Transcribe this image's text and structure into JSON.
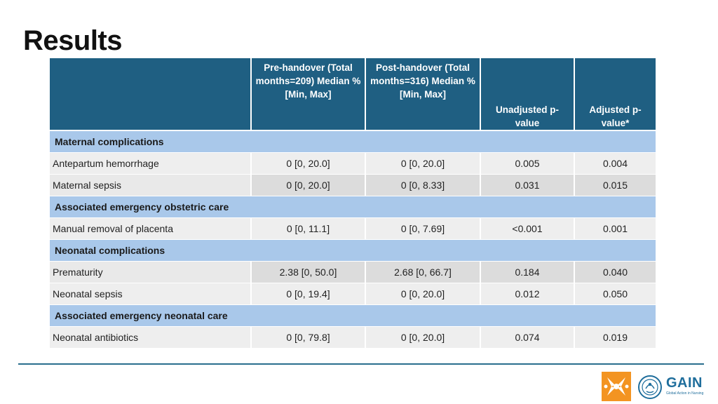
{
  "slide": {
    "title": "Results"
  },
  "table": {
    "headers": [
      "",
      "Pre-handover (Total months=209) Median % [Min, Max]",
      "Post-handover (Total months=316) Median % [Min, Max]",
      "Unadjusted p-value",
      "Adjusted p-value*"
    ],
    "rows": [
      {
        "type": "section",
        "label": "Maternal complications"
      },
      {
        "type": "data",
        "label": "Antepartum hemorrhage",
        "pre": "0 [0, 20.0]",
        "post": "0 [0, 20.0]",
        "unadj": "0.005",
        "adj": "0.004"
      },
      {
        "type": "data",
        "label": "Maternal sepsis",
        "pre": "0 [0, 20.0]",
        "post": "0 [0, 8.33]",
        "unadj": "0.031",
        "adj": "0.015"
      },
      {
        "type": "section",
        "label": "Associated emergency obstetric care"
      },
      {
        "type": "data",
        "label": "Manual removal of placenta",
        "pre": "0 [0, 11.1]",
        "post": "0 [0, 7.69]",
        "unadj": "<0.001",
        "adj": "0.001"
      },
      {
        "type": "section",
        "label": "Neonatal complications"
      },
      {
        "type": "data",
        "label": "Prematurity",
        "pre": "2.38 [0, 50.0]",
        "post": "2.68 [0, 66.7]",
        "unadj": "0.184",
        "adj": "0.040"
      },
      {
        "type": "data",
        "label": "Neonatal sepsis",
        "pre": "0 [0, 19.4]",
        "post": "0 [0, 20.0]",
        "unadj": "0.012",
        "adj": "0.050"
      },
      {
        "type": "section",
        "label": "Associated emergency neonatal care"
      },
      {
        "type": "data",
        "label": "Neonatal antibiotics",
        "pre": "0 [0, 79.8]",
        "post": "0 [0, 20.0]",
        "unadj": "0.074",
        "adj": "0.019"
      }
    ]
  },
  "footer": {
    "logo_left": "hands-logo-icon",
    "logo_right_text": "GAIN",
    "logo_right_subtext": "Global Action in Nursing",
    "logo_right_icon": "globe-icon"
  },
  "colors": {
    "header_bg": "#1f5f82",
    "section_bg": "#a9c8ea",
    "row_bg": "#eeeeee",
    "rule": "#2a6e8e",
    "logo_orange": "#f39422",
    "gain_blue": "#1f6e9c"
  }
}
